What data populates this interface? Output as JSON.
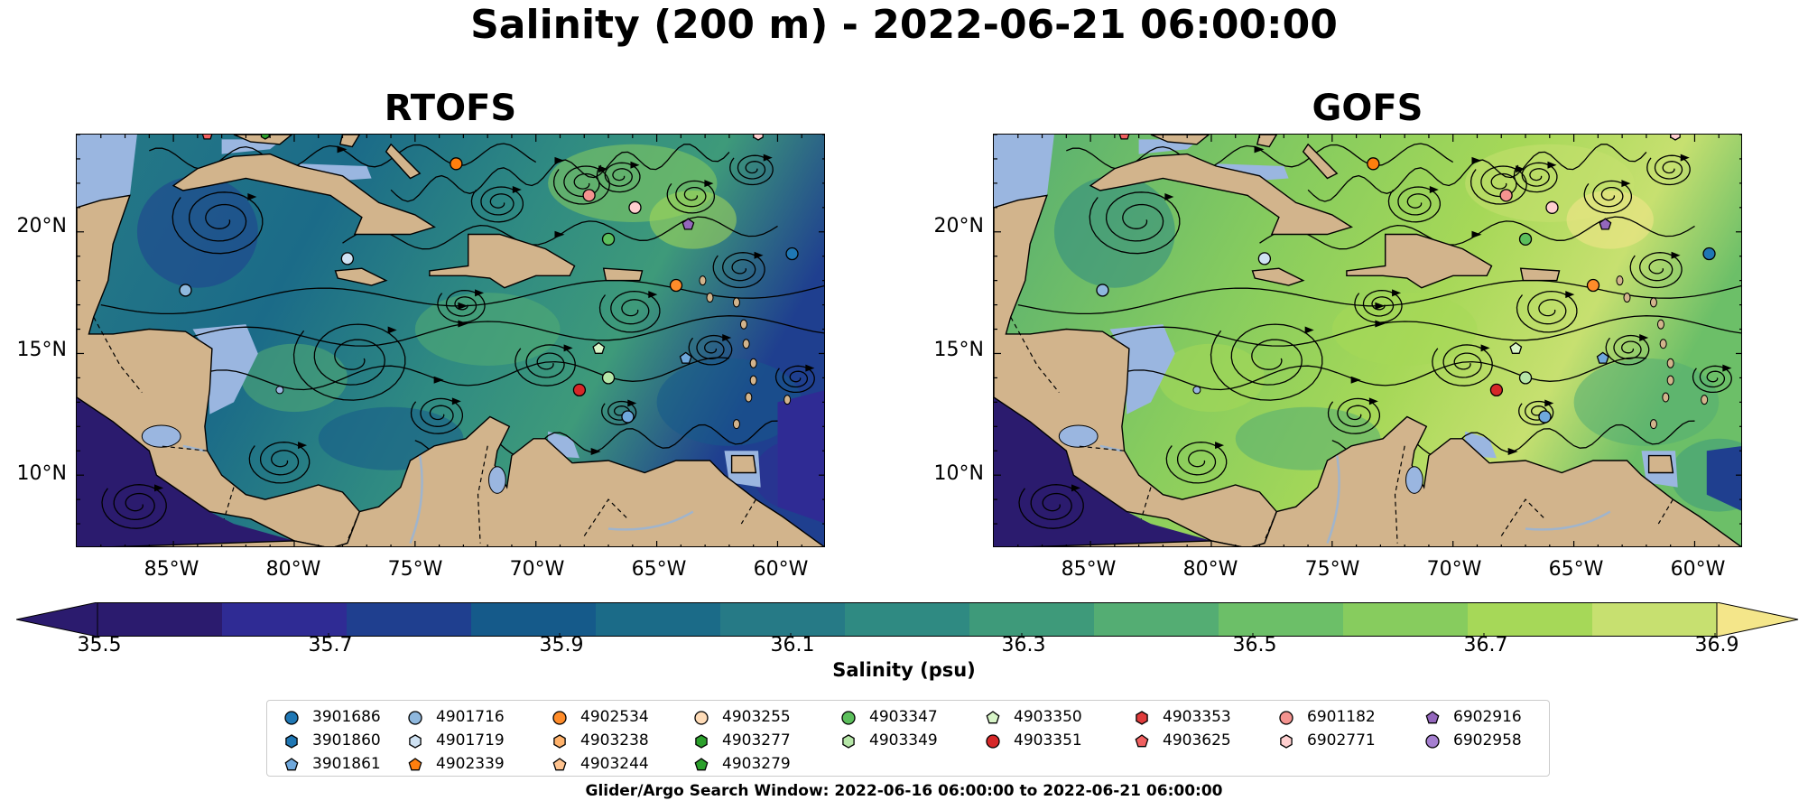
{
  "figure": {
    "title": "Salinity (200 m) - 2022-06-21 06:00:00"
  },
  "panels": [
    {
      "title": "RTOFS",
      "model": "rtofs"
    },
    {
      "title": "GOFS",
      "model": "gofs"
    }
  ],
  "axes": {
    "y_ticks": [
      "20°N",
      "15°N",
      "10°N"
    ],
    "x_ticks": [
      "85°W",
      "80°W",
      "75°W",
      "70°W",
      "65°W",
      "60°W"
    ]
  },
  "colorbar": {
    "title": "Salinity (psu)",
    "tick_labels": [
      "35.5",
      "35.7",
      "35.9",
      "36.1",
      "36.3",
      "36.5",
      "36.7",
      "36.9"
    ],
    "colors": [
      "#2b1b6e",
      "#2f2b94",
      "#1f3f8f",
      "#155a8a",
      "#1b6b88",
      "#267a86",
      "#2f8a82",
      "#3e9a7a",
      "#54ad73",
      "#6cbf68",
      "#87cc5e",
      "#a6d858",
      "#c7e070",
      "#f4e68a"
    ]
  },
  "legend": {
    "columns": [
      [
        {
          "id": "3901686",
          "marker": "circle",
          "color": "#1f77b4"
        },
        {
          "id": "3901860",
          "marker": "hexagon",
          "color": "#1f77b4"
        },
        {
          "id": "3901861",
          "marker": "pentagon",
          "color": "#6fa8dc"
        }
      ],
      [
        {
          "id": "4901716",
          "marker": "circle",
          "color": "#8fb8de"
        },
        {
          "id": "4901719",
          "marker": "hexagon",
          "color": "#cfe2f3"
        },
        {
          "id": "4902339",
          "marker": "pentagon",
          "color": "#ff7f0e"
        }
      ],
      [
        {
          "id": "4902534",
          "marker": "circle",
          "color": "#ff8c2a"
        },
        {
          "id": "4903238",
          "marker": "hexagon",
          "color": "#ffb26b"
        },
        {
          "id": "4903244",
          "marker": "pentagon",
          "color": "#ffc38f"
        }
      ],
      [
        {
          "id": "4903255",
          "marker": "circle",
          "color": "#ffdcb8"
        },
        {
          "id": "4903277",
          "marker": "hexagon",
          "color": "#2ca02c"
        },
        {
          "id": "4903279",
          "marker": "pentagon",
          "color": "#2ca02c"
        }
      ],
      [
        {
          "id": "4903347",
          "marker": "circle",
          "color": "#5cbf5c"
        },
        {
          "id": "4903349",
          "marker": "hexagon",
          "color": "#b6e7a8"
        }
      ],
      [
        {
          "id": "4903350",
          "marker": "pentagon",
          "color": "#d8f5c8"
        },
        {
          "id": "4903351",
          "marker": "circle",
          "color": "#d62728"
        }
      ],
      [
        {
          "id": "4903353",
          "marker": "hexagon",
          "color": "#e03c3c"
        },
        {
          "id": "4903625",
          "marker": "pentagon",
          "color": "#f06060"
        }
      ],
      [
        {
          "id": "6901182",
          "marker": "circle",
          "color": "#f4938f"
        },
        {
          "id": "6902771",
          "marker": "hexagon",
          "color": "#ffcfcf"
        }
      ],
      [
        {
          "id": "6902916",
          "marker": "pentagon",
          "color": "#9467bd"
        },
        {
          "id": "6902958",
          "marker": "circle",
          "color": "#a57fd0"
        }
      ]
    ]
  },
  "search_window": "Glider/Argo Search Window: 2022-06-16 06:00:00 to 2022-06-21 06:00:00",
  "map_extent": {
    "lon": [
      -89,
      -58
    ],
    "lat": [
      7,
      24
    ]
  },
  "floats": [
    {
      "lon": -84.5,
      "lat": 17.6,
      "color": "#8fb8de",
      "marker": "circle"
    },
    {
      "lon": -77.8,
      "lat": 18.9,
      "color": "#cfe2f3",
      "marker": "circle"
    },
    {
      "lon": -73.3,
      "lat": 22.8,
      "color": "#ff7f0e",
      "marker": "circle"
    },
    {
      "lon": -67.8,
      "lat": 21.5,
      "color": "#f4938f",
      "marker": "circle"
    },
    {
      "lon": -65.9,
      "lat": 21.0,
      "color": "#ffcfcf",
      "marker": "circle"
    },
    {
      "lon": -63.7,
      "lat": 20.3,
      "color": "#9467bd",
      "marker": "pentagon"
    },
    {
      "lon": -67.0,
      "lat": 19.7,
      "color": "#5cbf5c",
      "marker": "circle"
    },
    {
      "lon": -64.2,
      "lat": 17.8,
      "color": "#ff8c2a",
      "marker": "circle"
    },
    {
      "lon": -59.4,
      "lat": 19.1,
      "color": "#1f77b4",
      "marker": "circle"
    },
    {
      "lon": -67.4,
      "lat": 15.2,
      "color": "#d8f5c8",
      "marker": "pentagon"
    },
    {
      "lon": -67.0,
      "lat": 14.0,
      "color": "#b6e7a8",
      "marker": "circle"
    },
    {
      "lon": -68.2,
      "lat": 13.5,
      "color": "#d62728",
      "marker": "circle"
    },
    {
      "lon": -66.2,
      "lat": 12.4,
      "color": "#6fa8dc",
      "marker": "circle"
    },
    {
      "lon": -63.8,
      "lat": 14.8,
      "color": "#6fa8dc",
      "marker": "pentagon"
    }
  ]
}
